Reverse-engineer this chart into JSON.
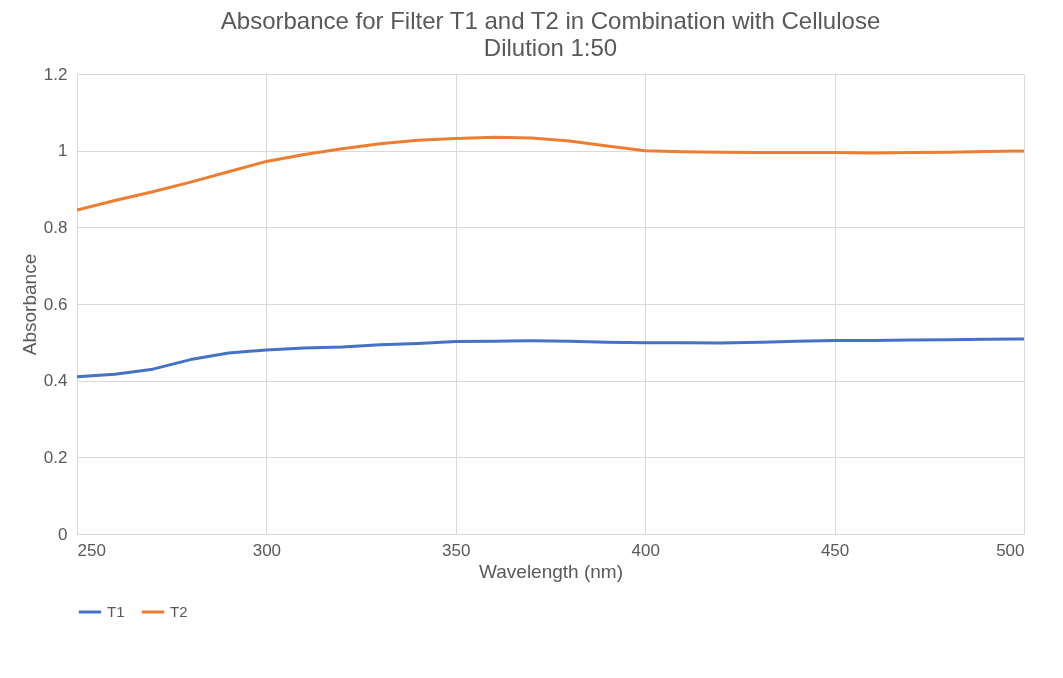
{
  "chart_data": {
    "type": "line",
    "title": "Absorbance for Filter T1 and T2 in Combination with Cellulose",
    "subtitle": "Dilution 1:50",
    "xlabel": "Wavelength (nm)",
    "ylabel": "Absorbance",
    "x": [
      250,
      260,
      270,
      280,
      290,
      300,
      310,
      320,
      330,
      340,
      350,
      360,
      370,
      380,
      390,
      400,
      410,
      420,
      430,
      440,
      450,
      460,
      470,
      480,
      490,
      500
    ],
    "series": [
      {
        "name": "T1",
        "color": "#4472c4",
        "values": [
          0.41,
          0.417,
          0.43,
          0.455,
          0.472,
          0.48,
          0.485,
          0.488,
          0.494,
          0.497,
          0.502,
          0.503,
          0.504,
          0.503,
          0.5,
          0.499,
          0.499,
          0.498,
          0.5,
          0.503,
          0.505,
          0.505,
          0.506,
          0.507,
          0.508,
          0.509
        ]
      },
      {
        "name": "T2",
        "color": "#ed7d31",
        "values": [
          0.845,
          0.87,
          0.893,
          0.918,
          0.945,
          0.972,
          0.99,
          1.005,
          1.018,
          1.027,
          1.032,
          1.035,
          1.033,
          1.025,
          1.012,
          1.0,
          0.997,
          0.996,
          0.995,
          0.995,
          0.995,
          0.994,
          0.995,
          0.996,
          0.998,
          0.999
        ]
      }
    ],
    "xlim": [
      250,
      500
    ],
    "xticks": [
      250,
      300,
      350,
      400,
      450,
      500
    ],
    "ylim": [
      0,
      1.2
    ],
    "yticks": [
      0,
      0.2,
      0.4,
      0.6,
      0.8,
      1,
      1.2
    ],
    "grid": true,
    "legend": "bottom"
  }
}
